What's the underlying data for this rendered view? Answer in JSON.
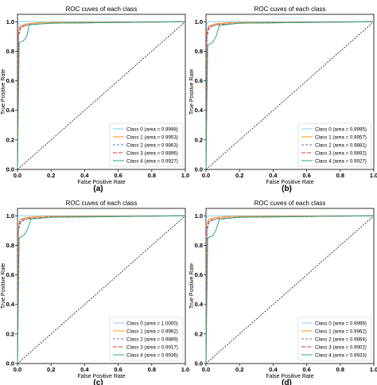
{
  "colors": {
    "class0": "#87cefa",
    "class1": "#ff8c1a",
    "class2": "#4a7fd0",
    "class3": "#e8332a",
    "class4": "#2ca87f",
    "diagonal": "#000000",
    "frame": "#000000"
  },
  "chart_data": [
    {
      "type": "line",
      "title": "ROC cuves of each class",
      "xlabel": "False Positive Rate",
      "ylabel": "True Positive Rate",
      "caption": "(a)",
      "xlim": [
        0,
        1
      ],
      "ylim": [
        0,
        1.05
      ],
      "xticks": [
        "0.0",
        "0.2",
        "0.4",
        "0.6",
        "0.8",
        "1.0"
      ],
      "yticks": [
        "0.0",
        "0.2",
        "0.4",
        "0.6",
        "0.8",
        "1.0"
      ],
      "grid": false,
      "legend_position": "bottom-right",
      "diagonal": true,
      "series": [
        {
          "name": "Class 0 (area = 0.9998)",
          "x": [
            0,
            0.004,
            0.01,
            0.03,
            1.0
          ],
          "y": [
            0,
            0.985,
            0.998,
            1.0,
            1.0
          ]
        },
        {
          "name": "Class 1 (area = 0.9953)",
          "x": [
            0,
            0.005,
            0.015,
            0.05,
            0.15,
            1.0
          ],
          "y": [
            0,
            0.93,
            0.97,
            0.985,
            0.995,
            1.0
          ]
        },
        {
          "name": "Class 2 (area = 0.9863)",
          "x": [
            0,
            0.006,
            0.02,
            0.06,
            0.2,
            1.0
          ],
          "y": [
            0,
            0.9,
            0.96,
            0.978,
            0.99,
            1.0
          ]
        },
        {
          "name": "Class 3 (area = 0.9896)",
          "x": [
            0,
            0.005,
            0.02,
            0.06,
            0.2,
            1.0
          ],
          "y": [
            0,
            0.91,
            0.965,
            0.98,
            0.99,
            1.0
          ]
        },
        {
          "name": "Class 4 (area = 0.9927)",
          "x": [
            0,
            0.01,
            0.035,
            0.055,
            0.07,
            0.2,
            1.0
          ],
          "y": [
            0,
            0.86,
            0.87,
            0.9,
            0.98,
            0.99,
            1.0
          ]
        }
      ]
    },
    {
      "type": "line",
      "title": "ROC cuves of each class",
      "xlabel": "False Positive Rate",
      "ylabel": "True Positive Rate",
      "caption": "(b)",
      "xlim": [
        0,
        1
      ],
      "ylim": [
        0,
        1.05
      ],
      "xticks": [
        "0.0",
        "0.2",
        "0.4",
        "0.6",
        "0.8",
        "1.0"
      ],
      "yticks": [
        "0.0",
        "0.2",
        "0.4",
        "0.6",
        "0.8",
        "1.0"
      ],
      "grid": false,
      "legend_position": "bottom-right",
      "diagonal": true,
      "series": [
        {
          "name": "Class 0 (area = 0.9995)",
          "x": [
            0,
            0.004,
            0.01,
            0.03,
            1.0
          ],
          "y": [
            0,
            0.98,
            0.997,
            1.0,
            1.0
          ]
        },
        {
          "name": "Class 1 (area = 0.9957)",
          "x": [
            0,
            0.005,
            0.015,
            0.05,
            0.15,
            1.0
          ],
          "y": [
            0,
            0.93,
            0.97,
            0.985,
            0.995,
            1.0
          ]
        },
        {
          "name": "Class 2 (area = 0.9881)",
          "x": [
            0,
            0.006,
            0.02,
            0.06,
            0.2,
            1.0
          ],
          "y": [
            0,
            0.9,
            0.96,
            0.978,
            0.99,
            1.0
          ]
        },
        {
          "name": "Class 3 (area = 0.9892)",
          "x": [
            0,
            0.005,
            0.02,
            0.06,
            0.2,
            1.0
          ],
          "y": [
            0,
            0.91,
            0.965,
            0.98,
            0.99,
            1.0
          ]
        },
        {
          "name": "Class 4 (area = 0.9927)",
          "x": [
            0,
            0.01,
            0.04,
            0.06,
            0.08,
            0.2,
            1.0
          ],
          "y": [
            0,
            0.84,
            0.86,
            0.9,
            0.975,
            0.99,
            1.0
          ]
        }
      ]
    },
    {
      "type": "line",
      "title": "ROC cuves of each class",
      "xlabel": "False Positive Rate",
      "ylabel": "True Positive Rate",
      "caption": "(c)",
      "xlim": [
        0,
        1
      ],
      "ylim": [
        0,
        1.05
      ],
      "xticks": [
        "0.0",
        "0.2",
        "0.4",
        "0.6",
        "0.8",
        "1.0"
      ],
      "yticks": [
        "0.0",
        "0.2",
        "0.4",
        "0.6",
        "0.8",
        "1.0"
      ],
      "grid": false,
      "legend_position": "bottom-right",
      "diagonal": true,
      "series": [
        {
          "name": "Class 0 (area = 1.0000)",
          "x": [
            0,
            0.003,
            1.0
          ],
          "y": [
            0,
            1.0,
            1.0
          ]
        },
        {
          "name": "Class 1 (area = 0.9962)",
          "x": [
            0,
            0.005,
            0.015,
            0.05,
            0.15,
            1.0
          ],
          "y": [
            0,
            0.94,
            0.975,
            0.988,
            0.996,
            1.0
          ]
        },
        {
          "name": "Class 2 (area = 0.9889)",
          "x": [
            0,
            0.006,
            0.02,
            0.06,
            0.2,
            1.0
          ],
          "y": [
            0,
            0.9,
            0.96,
            0.978,
            0.99,
            1.0
          ]
        },
        {
          "name": "Class 3 (area = 0.9917)",
          "x": [
            0,
            0.005,
            0.02,
            0.06,
            0.2,
            1.0
          ],
          "y": [
            0,
            0.92,
            0.97,
            0.982,
            0.992,
            1.0
          ]
        },
        {
          "name": "Class 4 (area = 0.9936)",
          "x": [
            0,
            0.01,
            0.04,
            0.06,
            0.08,
            0.2,
            1.0
          ],
          "y": [
            0,
            0.85,
            0.87,
            0.91,
            0.978,
            0.99,
            1.0
          ]
        }
      ]
    },
    {
      "type": "line",
      "title": "ROC cuves of each class",
      "xlabel": "False Positive Rate",
      "ylabel": "True Positive Rate",
      "caption": "(d)",
      "xlim": [
        0,
        1
      ],
      "ylim": [
        0,
        1.05
      ],
      "xticks": [
        "0.0",
        "0.2",
        "0.4",
        "0.6",
        "0.8",
        "1.0"
      ],
      "yticks": [
        "0.0",
        "0.2",
        "0.4",
        "0.6",
        "0.8",
        "1.0"
      ],
      "grid": false,
      "legend_position": "bottom-right",
      "diagonal": true,
      "series": [
        {
          "name": "Class 0 (area = 0.9999)",
          "x": [
            0,
            0.003,
            0.01,
            0.03,
            1.0
          ],
          "y": [
            0,
            0.99,
            0.999,
            1.0,
            1.0
          ]
        },
        {
          "name": "Class 1 (area = 0.9962)",
          "x": [
            0,
            0.005,
            0.015,
            0.05,
            0.15,
            1.0
          ],
          "y": [
            0,
            0.94,
            0.975,
            0.988,
            0.996,
            1.0
          ]
        },
        {
          "name": "Class 2 (area = 0.9864)",
          "x": [
            0,
            0.006,
            0.02,
            0.06,
            0.2,
            1.0
          ],
          "y": [
            0,
            0.9,
            0.96,
            0.978,
            0.99,
            1.0
          ]
        },
        {
          "name": "Class 3 (area = 0.9902)",
          "x": [
            0,
            0.005,
            0.02,
            0.06,
            0.2,
            1.0
          ],
          "y": [
            0,
            0.915,
            0.968,
            0.98,
            0.991,
            1.0
          ]
        },
        {
          "name": "Class 4 (area = 0.9933)",
          "x": [
            0,
            0.01,
            0.04,
            0.06,
            0.08,
            0.2,
            1.0
          ],
          "y": [
            0,
            0.85,
            0.865,
            0.905,
            0.977,
            0.99,
            1.0
          ]
        }
      ]
    }
  ]
}
